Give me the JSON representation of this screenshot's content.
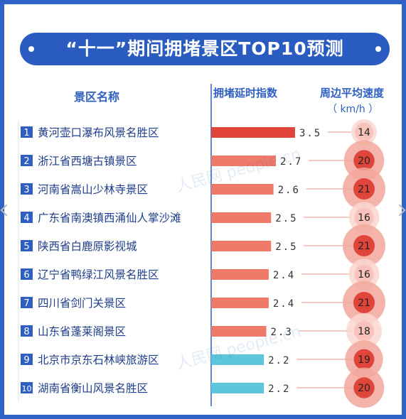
{
  "title": "“十一”期间拥堵景区TOP10预测",
  "headers": {
    "name": "景区名称",
    "index": "拥堵延时指数",
    "speed": "周边平均速度",
    "speed_unit": "（ km/h ）"
  },
  "watermark": "人民网 people.cn",
  "colors": {
    "red_bar": "#e0453b",
    "salmon_bar": "#f07a6a",
    "cyan_bar": "#5cc6dc",
    "badge_blue": "#2e5fc1",
    "axis": "#2e5fc1"
  },
  "chart_data": {
    "type": "bar",
    "orientation": "horizontal",
    "xlabel": "拥堵延时指数",
    "categories": [
      "黄河壶口瀑布风景名胜区",
      "浙江省西塘古镇景区",
      "河南省嵩山少林寺景区",
      "广东省南澳镇西涌仙人掌沙滩",
      "陕西省白鹿原影视城",
      "辽宁省鸭绿江风景名胜区",
      "四川省剑门关景区",
      "山东省蓬莱阁景区",
      "北京市京东石林峡旅游区",
      "湖南省衡山风景名胜区"
    ],
    "ranks": [
      "1",
      "2",
      "3",
      "4",
      "5",
      "6",
      "7",
      "8",
      "9",
      "10"
    ],
    "values": [
      3.5,
      2.7,
      2.6,
      2.5,
      2.5,
      2.4,
      2.4,
      2.3,
      2.2,
      2.2
    ],
    "value_labels": [
      "3.5",
      "2.7",
      "2.6",
      "2.5",
      "2.5",
      "2.4",
      "2.4",
      "2.3",
      "2.2",
      "2.2"
    ],
    "bar_colors": [
      "#e0453b",
      "#f07a6a",
      "#f07a6a",
      "#f07a6a",
      "#f07a6a",
      "#f07a6a",
      "#f07a6a",
      "#f07a6a",
      "#5cc6dc",
      "#5cc6dc"
    ],
    "speeds": [
      14,
      20,
      21,
      16,
      21,
      16,
      21,
      18,
      19,
      20
    ],
    "speed_labels": [
      "14",
      "20",
      "21",
      "16",
      "21",
      "16",
      "21",
      "18",
      "19",
      "20"
    ],
    "speed_unit": "km/h"
  }
}
